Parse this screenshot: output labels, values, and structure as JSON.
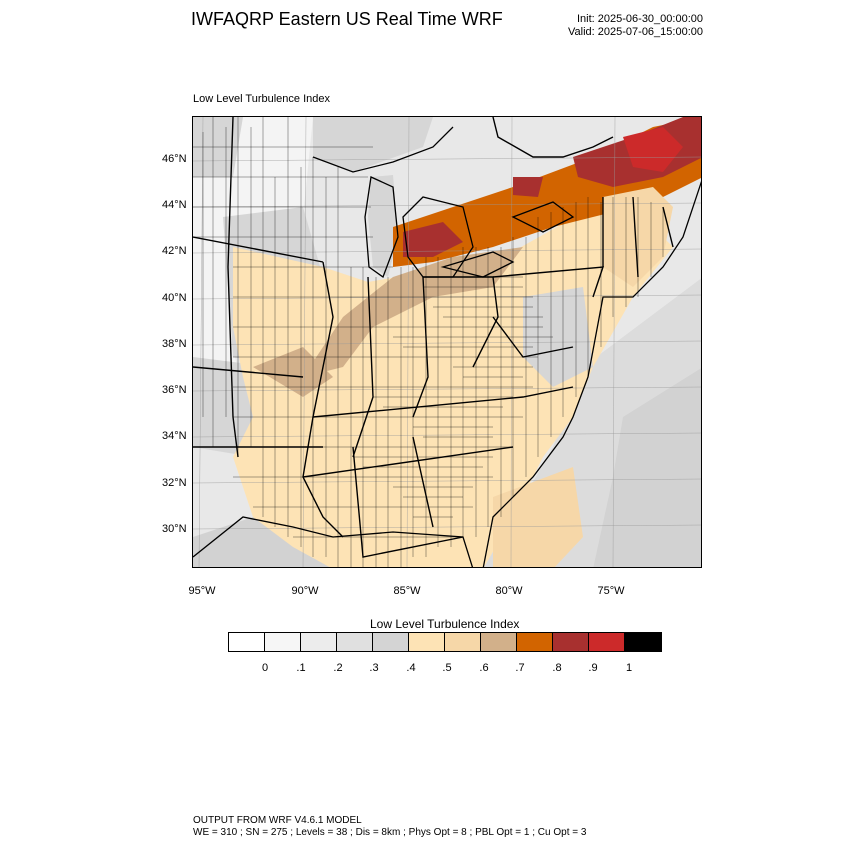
{
  "header": {
    "title": "IWFAQRP Eastern US Real Time WRF",
    "init": "Init: 2025-06-30_00:00:00",
    "valid": "Valid: 2025-07-06_15:00:00"
  },
  "map": {
    "subtitle": "Low Level Turbulence Index",
    "lat_labels": [
      "46°N",
      "44°N",
      "42°N",
      "40°N",
      "38°N",
      "36°N",
      "34°N",
      "32°N",
      "30°N"
    ],
    "lon_labels": [
      "95°W",
      "90°W",
      "85°W",
      "80°W",
      "75°W"
    ],
    "colors": {
      "land_low": "#e8e8e8",
      "light_gray": "#d6d6d6",
      "very_light": "#f4f4f4",
      "ocean_light": "#dcdcdc",
      "ocean_mid": "#d2d2d2",
      "tan_light": "#fde3b5",
      "tan_mid": "#f6d7a8",
      "brown": "#d2b08a",
      "orange": "#d26400",
      "red_dark": "#a8302f",
      "red": "#cc2a2a",
      "lines": "#000000"
    }
  },
  "colorbar": {
    "title": "Low Level Turbulence Index",
    "colors": [
      "#ffffff",
      "#f6f6f6",
      "#ececec",
      "#e0e0e0",
      "#d4d4d4",
      "#fde3b5",
      "#f6d7a8",
      "#d2b08a",
      "#d26400",
      "#a8302f",
      "#cc2a2a",
      "#000000"
    ],
    "labels": [
      "0",
      ".1",
      ".2",
      ".3",
      ".4",
      ".5",
      ".6",
      ".7",
      ".8",
      ".9",
      "1"
    ]
  },
  "footer": {
    "line1": "OUTPUT FROM WRF V4.6.1 MODEL",
    "line2": "WE = 310 ; SN = 275 ; Levels = 38 ; Dis = 8km ; Phys Opt = 8 ; PBL Opt = 1 ; Cu Opt = 3"
  }
}
